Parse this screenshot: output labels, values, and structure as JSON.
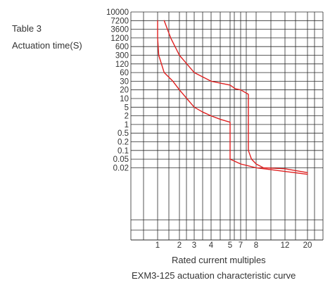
{
  "table_label": "Table 3",
  "colors": {
    "grid": "#2b2b2b",
    "curve": "#e02020",
    "text": "#333333"
  },
  "chart_data": {
    "type": "line",
    "title": "EXM3-125 actuation characteristic curve",
    "xlabel": "Rated current multiples",
    "ylabel": "Actuation time(S)",
    "y_ticks": [
      "10000",
      "7200",
      "3600",
      "1200",
      "600",
      "300",
      "120",
      "60",
      "30",
      "20",
      "10",
      "5",
      "2",
      "1",
      "0.5",
      "0.2",
      "0.1",
      "0.05",
      "0.02"
    ],
    "x_ticks": [
      "1",
      "2",
      "3",
      "4",
      "5",
      "7",
      "8",
      "12",
      "20"
    ],
    "x_axis": "categorical tick positions",
    "grid": true,
    "legend": "none",
    "series": [
      {
        "x": [
          "1",
          "1",
          "1.05",
          "1.3",
          "1.7",
          "2",
          "2.5",
          "3",
          "3.5",
          "4",
          "4.5",
          "5",
          "5",
          "5",
          "5",
          "7",
          "8",
          "20"
        ],
        "y": [
          "7200",
          "1200",
          "300",
          "60",
          "30",
          "20",
          "10",
          "5",
          "3",
          "2",
          "1.5",
          "1.2",
          "1",
          "0.1",
          "0.05",
          "0.03",
          "0.02",
          "0.01"
        ]
      },
      {
        "x": [
          "1.3",
          "1.6",
          "2",
          "2.5",
          "3",
          "4",
          "5",
          "6",
          "7",
          "7.5",
          "7.5",
          "7.5",
          "7.7",
          "8",
          "9",
          "12",
          "20"
        ],
        "y": [
          "7200",
          "1200",
          "300",
          "120",
          "60",
          "30",
          "25",
          "21",
          "20",
          "14",
          "2",
          "0.1",
          "0.05",
          "0.03",
          "0.02",
          "0.018",
          "0.012"
        ]
      }
    ]
  }
}
